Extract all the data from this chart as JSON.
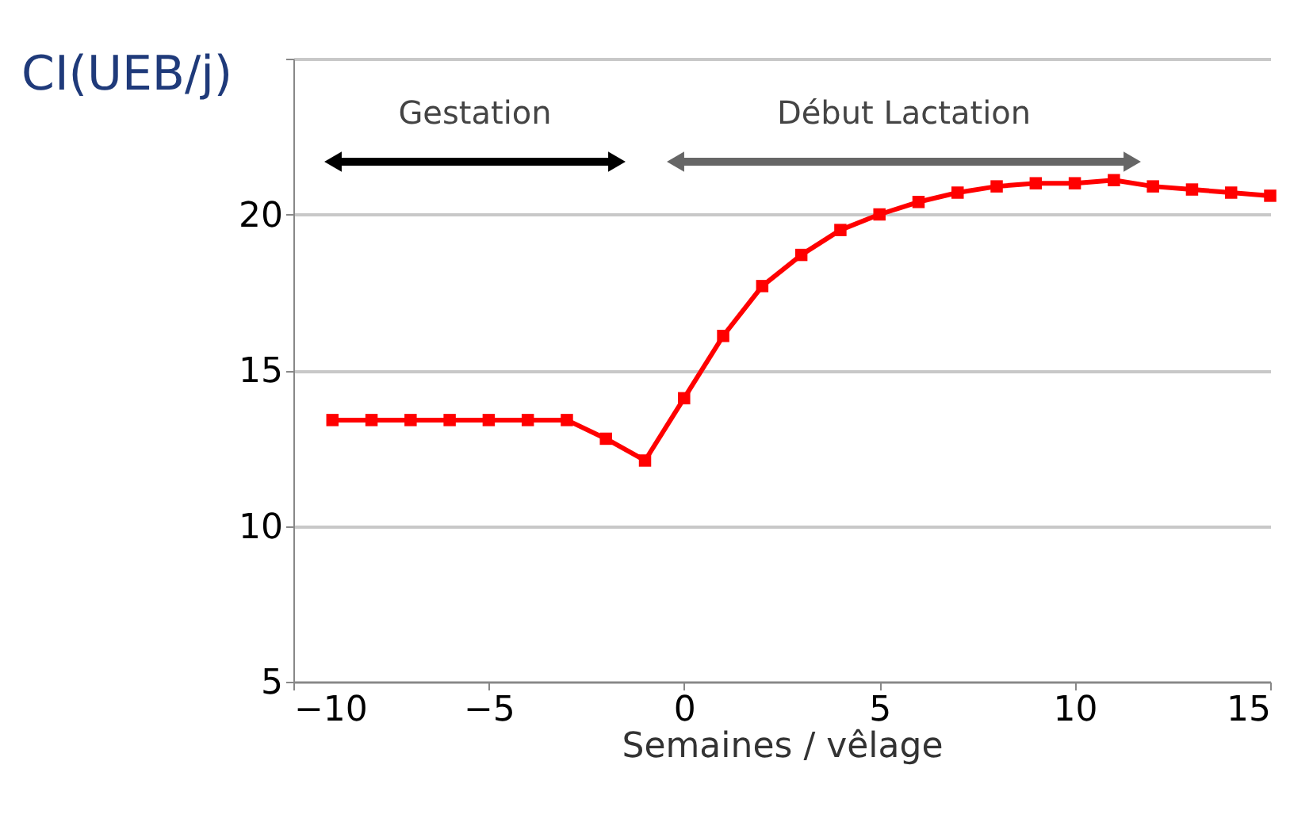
{
  "chart_data": {
    "type": "line",
    "xlabel": "Semaines / vêlage",
    "ylabel": "CI(UEB/j)",
    "x": [
      -9,
      -8,
      -7,
      -6,
      -5,
      -4,
      -3,
      -2,
      -1,
      0,
      1,
      2,
      3,
      4,
      5,
      6,
      7,
      8,
      9,
      10,
      11,
      12,
      13,
      14,
      15
    ],
    "series": [
      {
        "color": "#ff0000",
        "values": [
          13.4,
          13.4,
          13.4,
          13.4,
          13.4,
          13.4,
          13.4,
          12.8,
          12.1,
          14.1,
          16.1,
          17.7,
          18.7,
          19.5,
          20.0,
          20.4,
          20.7,
          20.9,
          21.0,
          21.0,
          21.1,
          20.9,
          20.8,
          20.7,
          20.6
        ]
      }
    ],
    "xlim": [
      -10,
      15
    ],
    "xticks": [
      -10,
      -5,
      0,
      5,
      10,
      15
    ],
    "ylim": [
      5,
      25
    ],
    "yticks": [
      5,
      10,
      15,
      20,
      {
        "value": 25,
        "label": null
      }
    ],
    "grid": "y",
    "marker": "square",
    "line_style": "solid",
    "annotations": [
      "Gestation",
      "Début Lactation"
    ]
  }
}
